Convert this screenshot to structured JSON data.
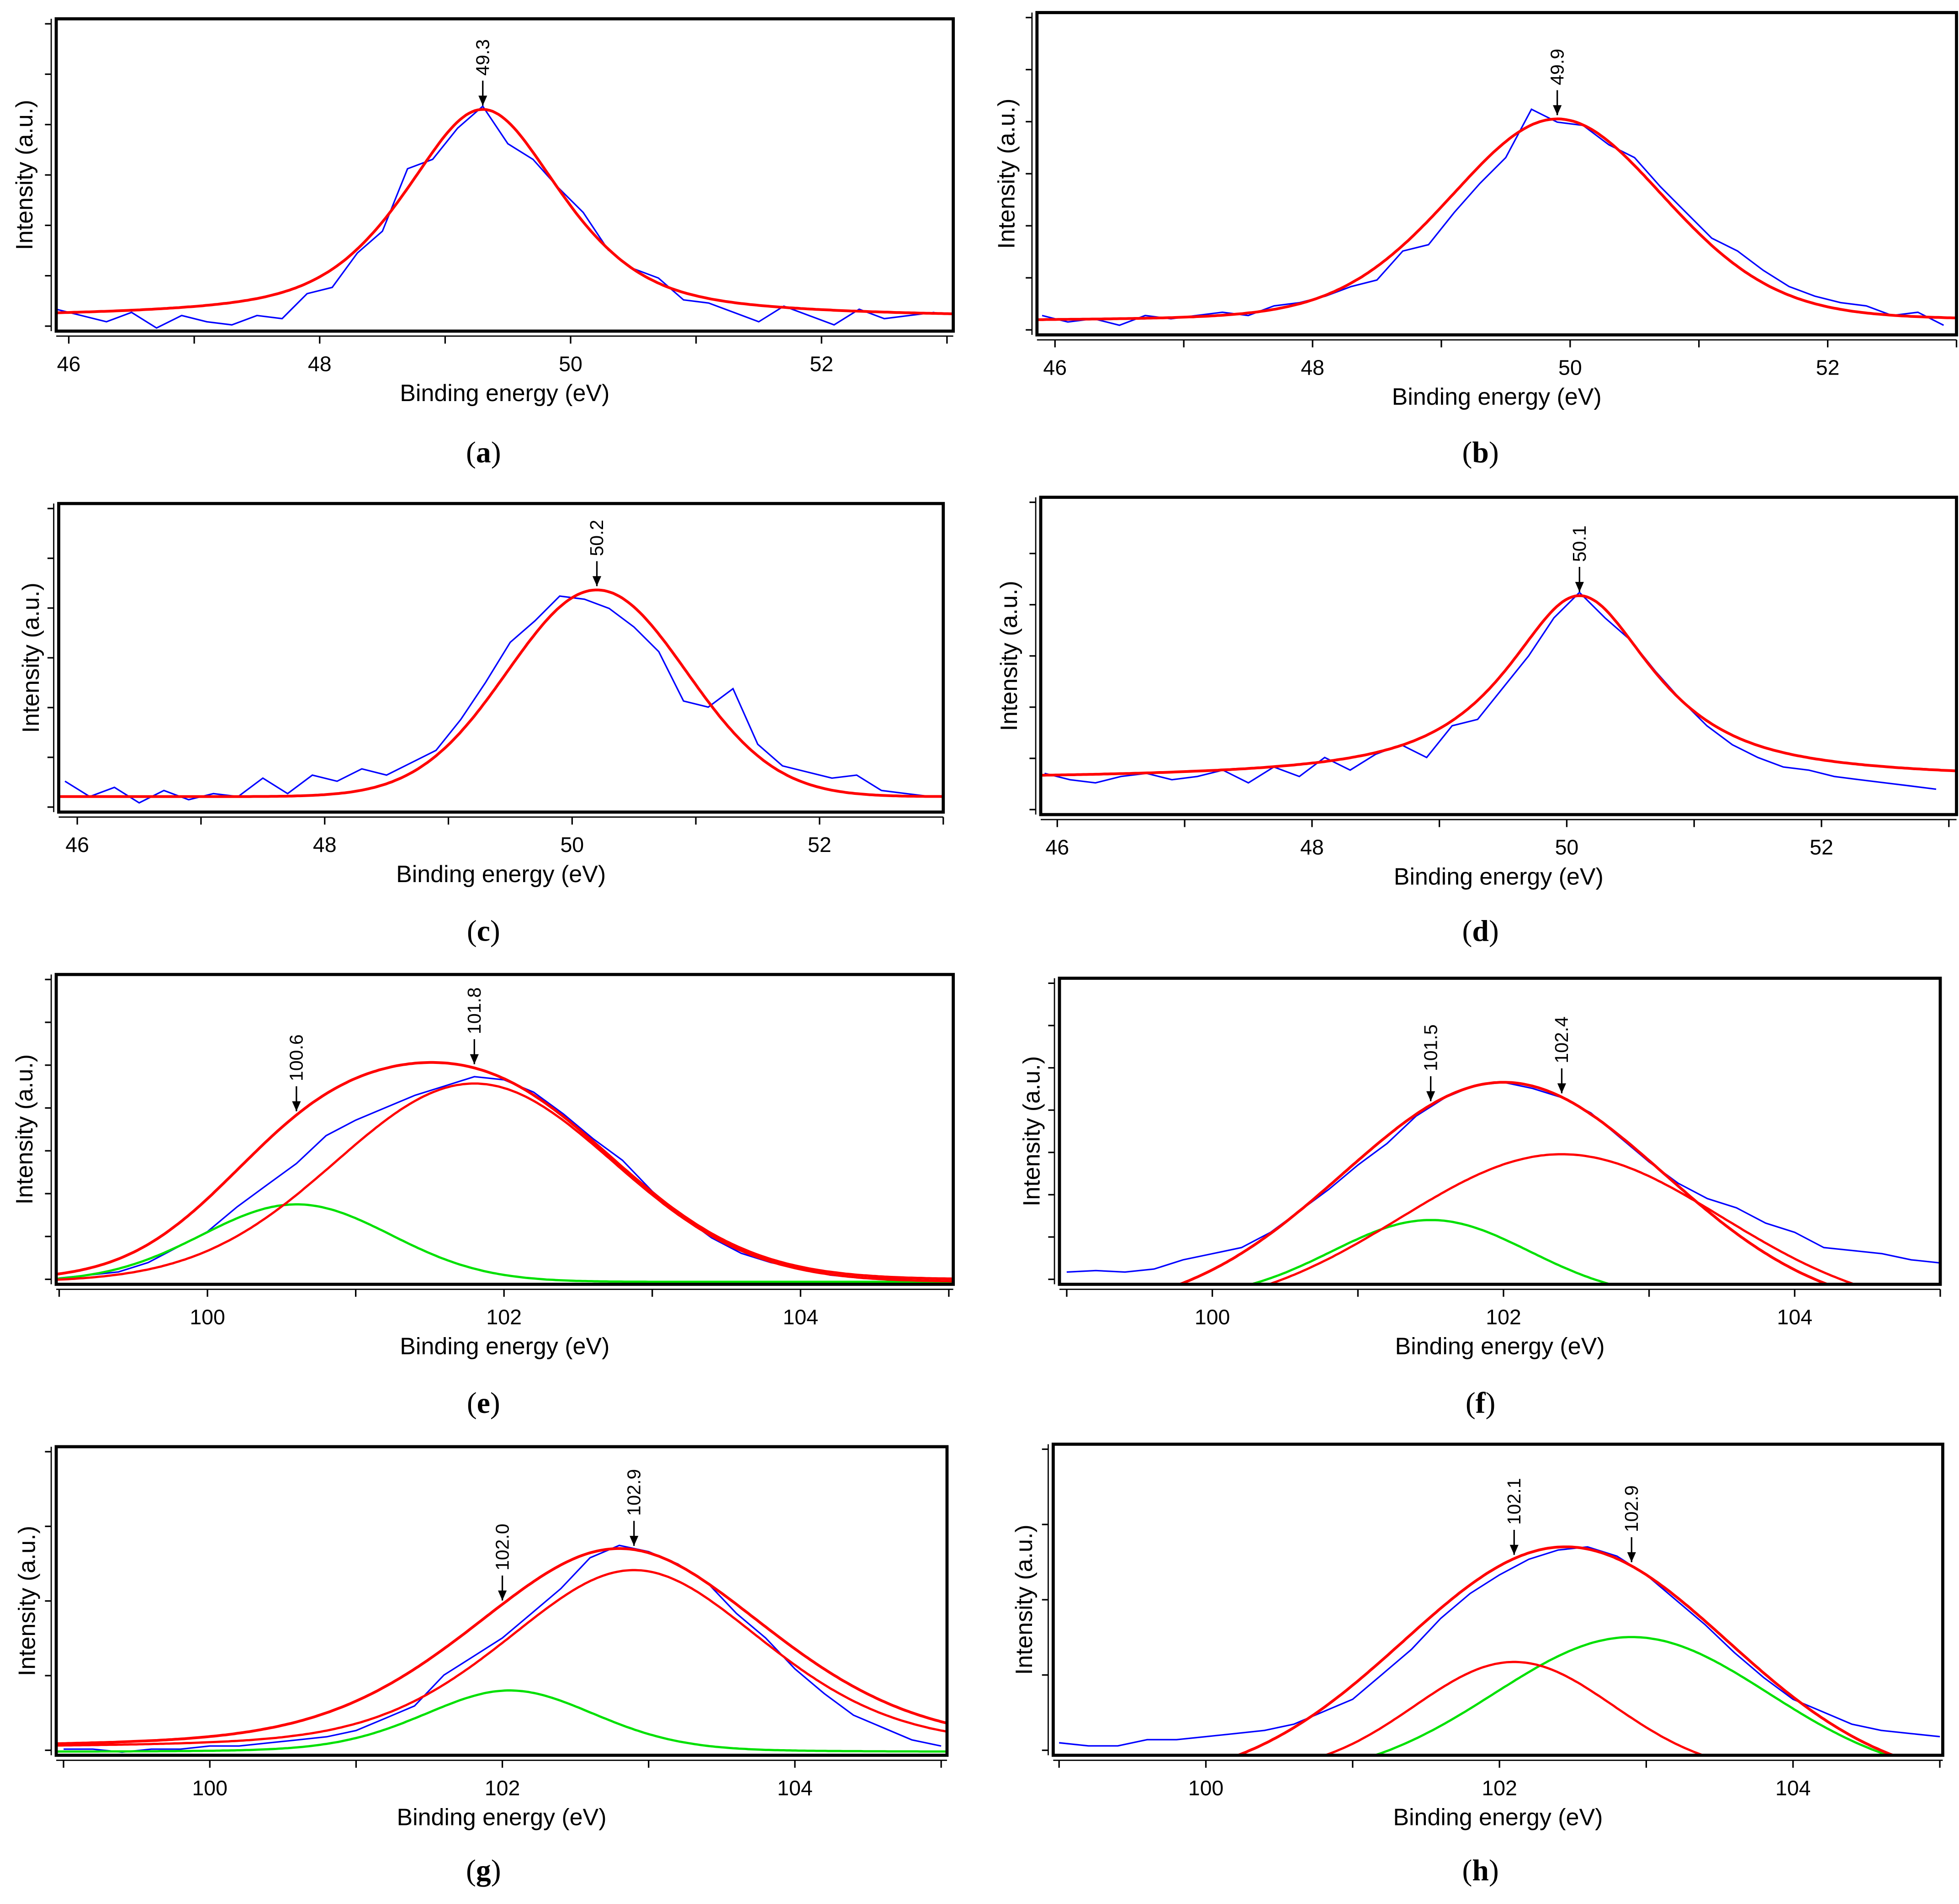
{
  "colors": {
    "measured": "#0000ff",
    "fit": "#ff0000",
    "component_green": "#00e000",
    "axis": "#000000"
  },
  "chart_data": [
    {
      "panel": "a",
      "caption_letter": "a",
      "type": "line",
      "xlabel": "Binding energy (eV)",
      "ylabel": "Intensity (a.u.)",
      "xlim": [
        45.9,
        53.05
      ],
      "ylim": [
        0,
        1
      ],
      "xticks": [
        46,
        48,
        50,
        52
      ],
      "minor_step": 1,
      "measured": {
        "x_start": 45.9,
        "x_step": 0.2,
        "y": [
          0.07,
          0.05,
          0.03,
          0.06,
          0.01,
          0.05,
          0.03,
          0.02,
          0.05,
          0.04,
          0.12,
          0.14,
          0.25,
          0.32,
          0.52,
          0.55,
          0.65,
          0.72,
          0.6,
          0.55,
          0.46,
          0.38,
          0.26,
          0.2,
          0.17,
          0.1,
          0.09,
          0.06,
          0.03,
          0.08,
          0.05,
          0.02,
          0.07,
          0.04,
          0.05,
          0.06
        ]
      },
      "fits": [
        {
          "name": "envelope",
          "color": "#ff0000",
          "center": 49.3,
          "height": 0.67,
          "fwhm": 1.5,
          "eta": 0.6,
          "base": 0.04
        }
      ],
      "annotations": [
        {
          "x": 49.3,
          "label": "49.3"
        }
      ]
    },
    {
      "panel": "b",
      "caption_letter": "b",
      "type": "line",
      "xlabel": "Binding energy (eV)",
      "ylabel": "Intensity (a.u.)",
      "xlim": [
        45.86,
        53.0
      ],
      "ylim": [
        0,
        1
      ],
      "xticks": [
        46,
        48,
        50,
        52
      ],
      "minor_step": 1,
      "measured": {
        "x_start": 45.9,
        "x_step": 0.2,
        "y": [
          0.06,
          0.04,
          0.05,
          0.03,
          0.06,
          0.05,
          0.06,
          0.07,
          0.06,
          0.09,
          0.1,
          0.12,
          0.15,
          0.17,
          0.26,
          0.28,
          0.38,
          0.47,
          0.55,
          0.7,
          0.66,
          0.65,
          0.59,
          0.55,
          0.46,
          0.38,
          0.3,
          0.26,
          0.2,
          0.15,
          0.12,
          0.1,
          0.09,
          0.06,
          0.07,
          0.03
        ]
      },
      "fits": [
        {
          "name": "envelope",
          "color": "#ff0000",
          "center": 49.9,
          "height": 0.63,
          "fwhm": 2.0,
          "eta": 0.2,
          "base": 0.04
        }
      ],
      "annotations": [
        {
          "x": 49.9,
          "label": "49.9"
        }
      ]
    },
    {
      "panel": "c",
      "caption_letter": "c",
      "type": "line",
      "xlabel": "Binding energy (eV)",
      "ylabel": "Intensity (a.u.)",
      "xlim": [
        45.85,
        53.0
      ],
      "ylim": [
        0,
        1
      ],
      "xticks": [
        46,
        48,
        50,
        52
      ],
      "minor_step": 1,
      "measured": {
        "x_start": 45.9,
        "x_step": 0.2,
        "y": [
          0.1,
          0.05,
          0.08,
          0.03,
          0.07,
          0.04,
          0.06,
          0.05,
          0.11,
          0.06,
          0.12,
          0.1,
          0.14,
          0.12,
          0.16,
          0.2,
          0.3,
          0.42,
          0.55,
          0.62,
          0.7,
          0.69,
          0.66,
          0.6,
          0.52,
          0.36,
          0.34,
          0.4,
          0.22,
          0.15,
          0.13,
          0.11,
          0.12,
          0.07,
          0.06,
          0.05
        ]
      },
      "fits": [
        {
          "name": "envelope",
          "color": "#ff0000",
          "center": 50.2,
          "height": 0.67,
          "fwhm": 1.7,
          "eta": 0.0,
          "base": 0.05
        }
      ],
      "annotations": [
        {
          "x": 50.2,
          "label": "50.2"
        }
      ]
    },
    {
      "panel": "d",
      "caption_letter": "d",
      "type": "line",
      "xlabel": "Binding energy (eV)",
      "ylabel": "Intensity (a.u.)",
      "xlim": [
        45.87,
        53.06
      ],
      "ylim": [
        0,
        1
      ],
      "xticks": [
        46,
        48,
        50,
        52
      ],
      "minor_step": 1,
      "measured": {
        "x_start": 45.9,
        "x_step": 0.2,
        "y": [
          0.13,
          0.11,
          0.1,
          0.12,
          0.13,
          0.11,
          0.12,
          0.14,
          0.1,
          0.15,
          0.12,
          0.18,
          0.14,
          0.19,
          0.22,
          0.18,
          0.28,
          0.3,
          0.4,
          0.5,
          0.62,
          0.7,
          0.62,
          0.55,
          0.45,
          0.36,
          0.28,
          0.22,
          0.18,
          0.15,
          0.14,
          0.12,
          0.11,
          0.1,
          0.09,
          0.08
        ]
      },
      "fits": [
        {
          "name": "envelope",
          "color": "#ff0000",
          "center": 50.1,
          "height": 0.58,
          "fwhm": 1.4,
          "eta": 0.9,
          "base": 0.11
        }
      ],
      "annotations": [
        {
          "x": 50.1,
          "label": "50.1"
        }
      ]
    },
    {
      "panel": "e",
      "caption_letter": "e",
      "type": "line",
      "xlabel": "Binding energy (eV)",
      "ylabel": "Intensity (a.u.)",
      "xlim": [
        98.98,
        105.03
      ],
      "ylim": [
        0,
        1
      ],
      "xticks": [
        100,
        102,
        104
      ],
      "minor_step": 1,
      "measured": {
        "x_start": 99.0,
        "x_step": 0.2,
        "y": [
          0.02,
          0.03,
          0.04,
          0.07,
          0.12,
          0.17,
          0.25,
          0.32,
          0.39,
          0.48,
          0.53,
          0.57,
          0.61,
          0.64,
          0.67,
          0.66,
          0.62,
          0.55,
          0.47,
          0.4,
          0.3,
          0.22,
          0.15,
          0.1,
          0.07,
          0.05,
          0.03,
          0.02,
          0.02,
          0.01,
          0.01
        ]
      },
      "fits": [
        {
          "name": "envelope",
          "color": "#ff0000",
          "sum_of": [
            1,
            2
          ]
        },
        {
          "name": "component-1",
          "color": "#ff0000",
          "center": 101.8,
          "height": 0.64,
          "fwhm": 2.2,
          "eta": 0.0,
          "base": 0.008
        },
        {
          "name": "component-2",
          "color": "#00e000",
          "center": 100.6,
          "height": 0.25,
          "fwhm": 1.5,
          "eta": 0.0,
          "base": 0.008
        }
      ],
      "annotations": [
        {
          "x": 100.6,
          "label": "100.6"
        },
        {
          "x": 101.8,
          "label": "101.8"
        }
      ]
    },
    {
      "panel": "f",
      "caption_letter": "f",
      "type": "line",
      "xlabel": "Binding energy (eV)",
      "ylabel": "Intensity (a.u.)",
      "xlim": [
        98.95,
        105.0
      ],
      "ylim": [
        0,
        1
      ],
      "xticks": [
        100,
        102,
        104
      ],
      "minor_step": 1,
      "measured": {
        "x_start": 99.0,
        "x_step": 0.2,
        "y": [
          0.04,
          0.045,
          0.04,
          0.05,
          0.08,
          0.1,
          0.12,
          0.17,
          0.24,
          0.31,
          0.39,
          0.46,
          0.55,
          0.61,
          0.65,
          0.66,
          0.64,
          0.61,
          0.56,
          0.48,
          0.4,
          0.33,
          0.28,
          0.25,
          0.2,
          0.17,
          0.12,
          0.11,
          0.1,
          0.08,
          0.07
        ]
      },
      "fits": [
        {
          "name": "envelope",
          "color": "#ff0000",
          "center": 102.0,
          "height": 0.76,
          "fwhm": 2.6,
          "eta": 0.0,
          "base": -0.1
        },
        {
          "name": "component-1",
          "color": "#ff0000",
          "center": 102.4,
          "height": 0.525,
          "fwhm": 2.6,
          "eta": 0.0,
          "base": -0.1
        },
        {
          "name": "component-2",
          "color": "#00e000",
          "center": 101.5,
          "height": 0.26,
          "fwhm": 1.6,
          "eta": 0.0,
          "base": -0.05
        }
      ],
      "annotations": [
        {
          "x": 101.5,
          "label": "101.5"
        },
        {
          "x": 102.4,
          "label": "102.4"
        }
      ]
    },
    {
      "panel": "g",
      "caption_letter": "g",
      "type": "line",
      "xlabel": "Binding energy (eV)",
      "ylabel": "Intensity (a.u.)",
      "xlim": [
        98.95,
        105.04
      ],
      "ylim": [
        0,
        1
      ],
      "xticks": [
        100,
        102,
        104
      ],
      "minor_step": 1,
      "measured": {
        "x_start": 99.0,
        "x_step": 0.2,
        "y": [
          0.02,
          0.02,
          0.01,
          0.02,
          0.02,
          0.03,
          0.03,
          0.04,
          0.05,
          0.06,
          0.08,
          0.12,
          0.16,
          0.26,
          0.32,
          0.38,
          0.46,
          0.54,
          0.64,
          0.68,
          0.66,
          0.62,
          0.56,
          0.46,
          0.38,
          0.28,
          0.2,
          0.13,
          0.09,
          0.05,
          0.03
        ]
      },
      "fits": [
        {
          "name": "envelope",
          "color": "#ff0000",
          "center": 102.8,
          "height": 0.65,
          "fwhm": 2.4,
          "eta": 0.3,
          "base": 0.02
        },
        {
          "name": "component-1",
          "color": "#ff0000",
          "center": 102.9,
          "height": 0.58,
          "fwhm": 2.1,
          "eta": 0.3,
          "base": 0.02
        },
        {
          "name": "component-2",
          "color": "#00e000",
          "center": 102.05,
          "height": 0.2,
          "fwhm": 1.4,
          "eta": 0.2,
          "base": 0.01
        }
      ],
      "annotations": [
        {
          "x": 102.0,
          "label": "102.0"
        },
        {
          "x": 102.9,
          "label": "102.9"
        }
      ]
    },
    {
      "panel": "h",
      "caption_letter": "h",
      "type": "line",
      "xlabel": "Binding energy (eV)",
      "ylabel": "Intensity (a.u.)",
      "xlim": [
        98.96,
        105.02
      ],
      "ylim": [
        0,
        1
      ],
      "xticks": [
        100,
        102,
        104
      ],
      "minor_step": 1,
      "measured": {
        "x_start": 99.0,
        "x_step": 0.2,
        "y": [
          0.04,
          0.03,
          0.03,
          0.05,
          0.05,
          0.06,
          0.07,
          0.08,
          0.1,
          0.14,
          0.18,
          0.26,
          0.34,
          0.44,
          0.52,
          0.58,
          0.63,
          0.66,
          0.67,
          0.64,
          0.58,
          0.5,
          0.42,
          0.33,
          0.25,
          0.18,
          0.14,
          0.1,
          0.08,
          0.07,
          0.06
        ]
      },
      "fits": [
        {
          "name": "envelope",
          "color": "#ff0000",
          "center": 102.45,
          "height": 0.77,
          "fwhm": 2.6,
          "eta": 0.0,
          "base": -0.1
        },
        {
          "name": "component-1",
          "color": "#ff0000",
          "center": 102.1,
          "height": 0.36,
          "fwhm": 1.6,
          "eta": 0.0,
          "base": -0.06
        },
        {
          "name": "component-2",
          "color": "#00e000",
          "center": 102.9,
          "height": 0.46,
          "fwhm": 2.2,
          "eta": 0.0,
          "base": -0.08
        }
      ],
      "annotations": [
        {
          "x": 102.1,
          "label": "102.1"
        },
        {
          "x": 102.9,
          "label": "102.9"
        }
      ]
    }
  ]
}
